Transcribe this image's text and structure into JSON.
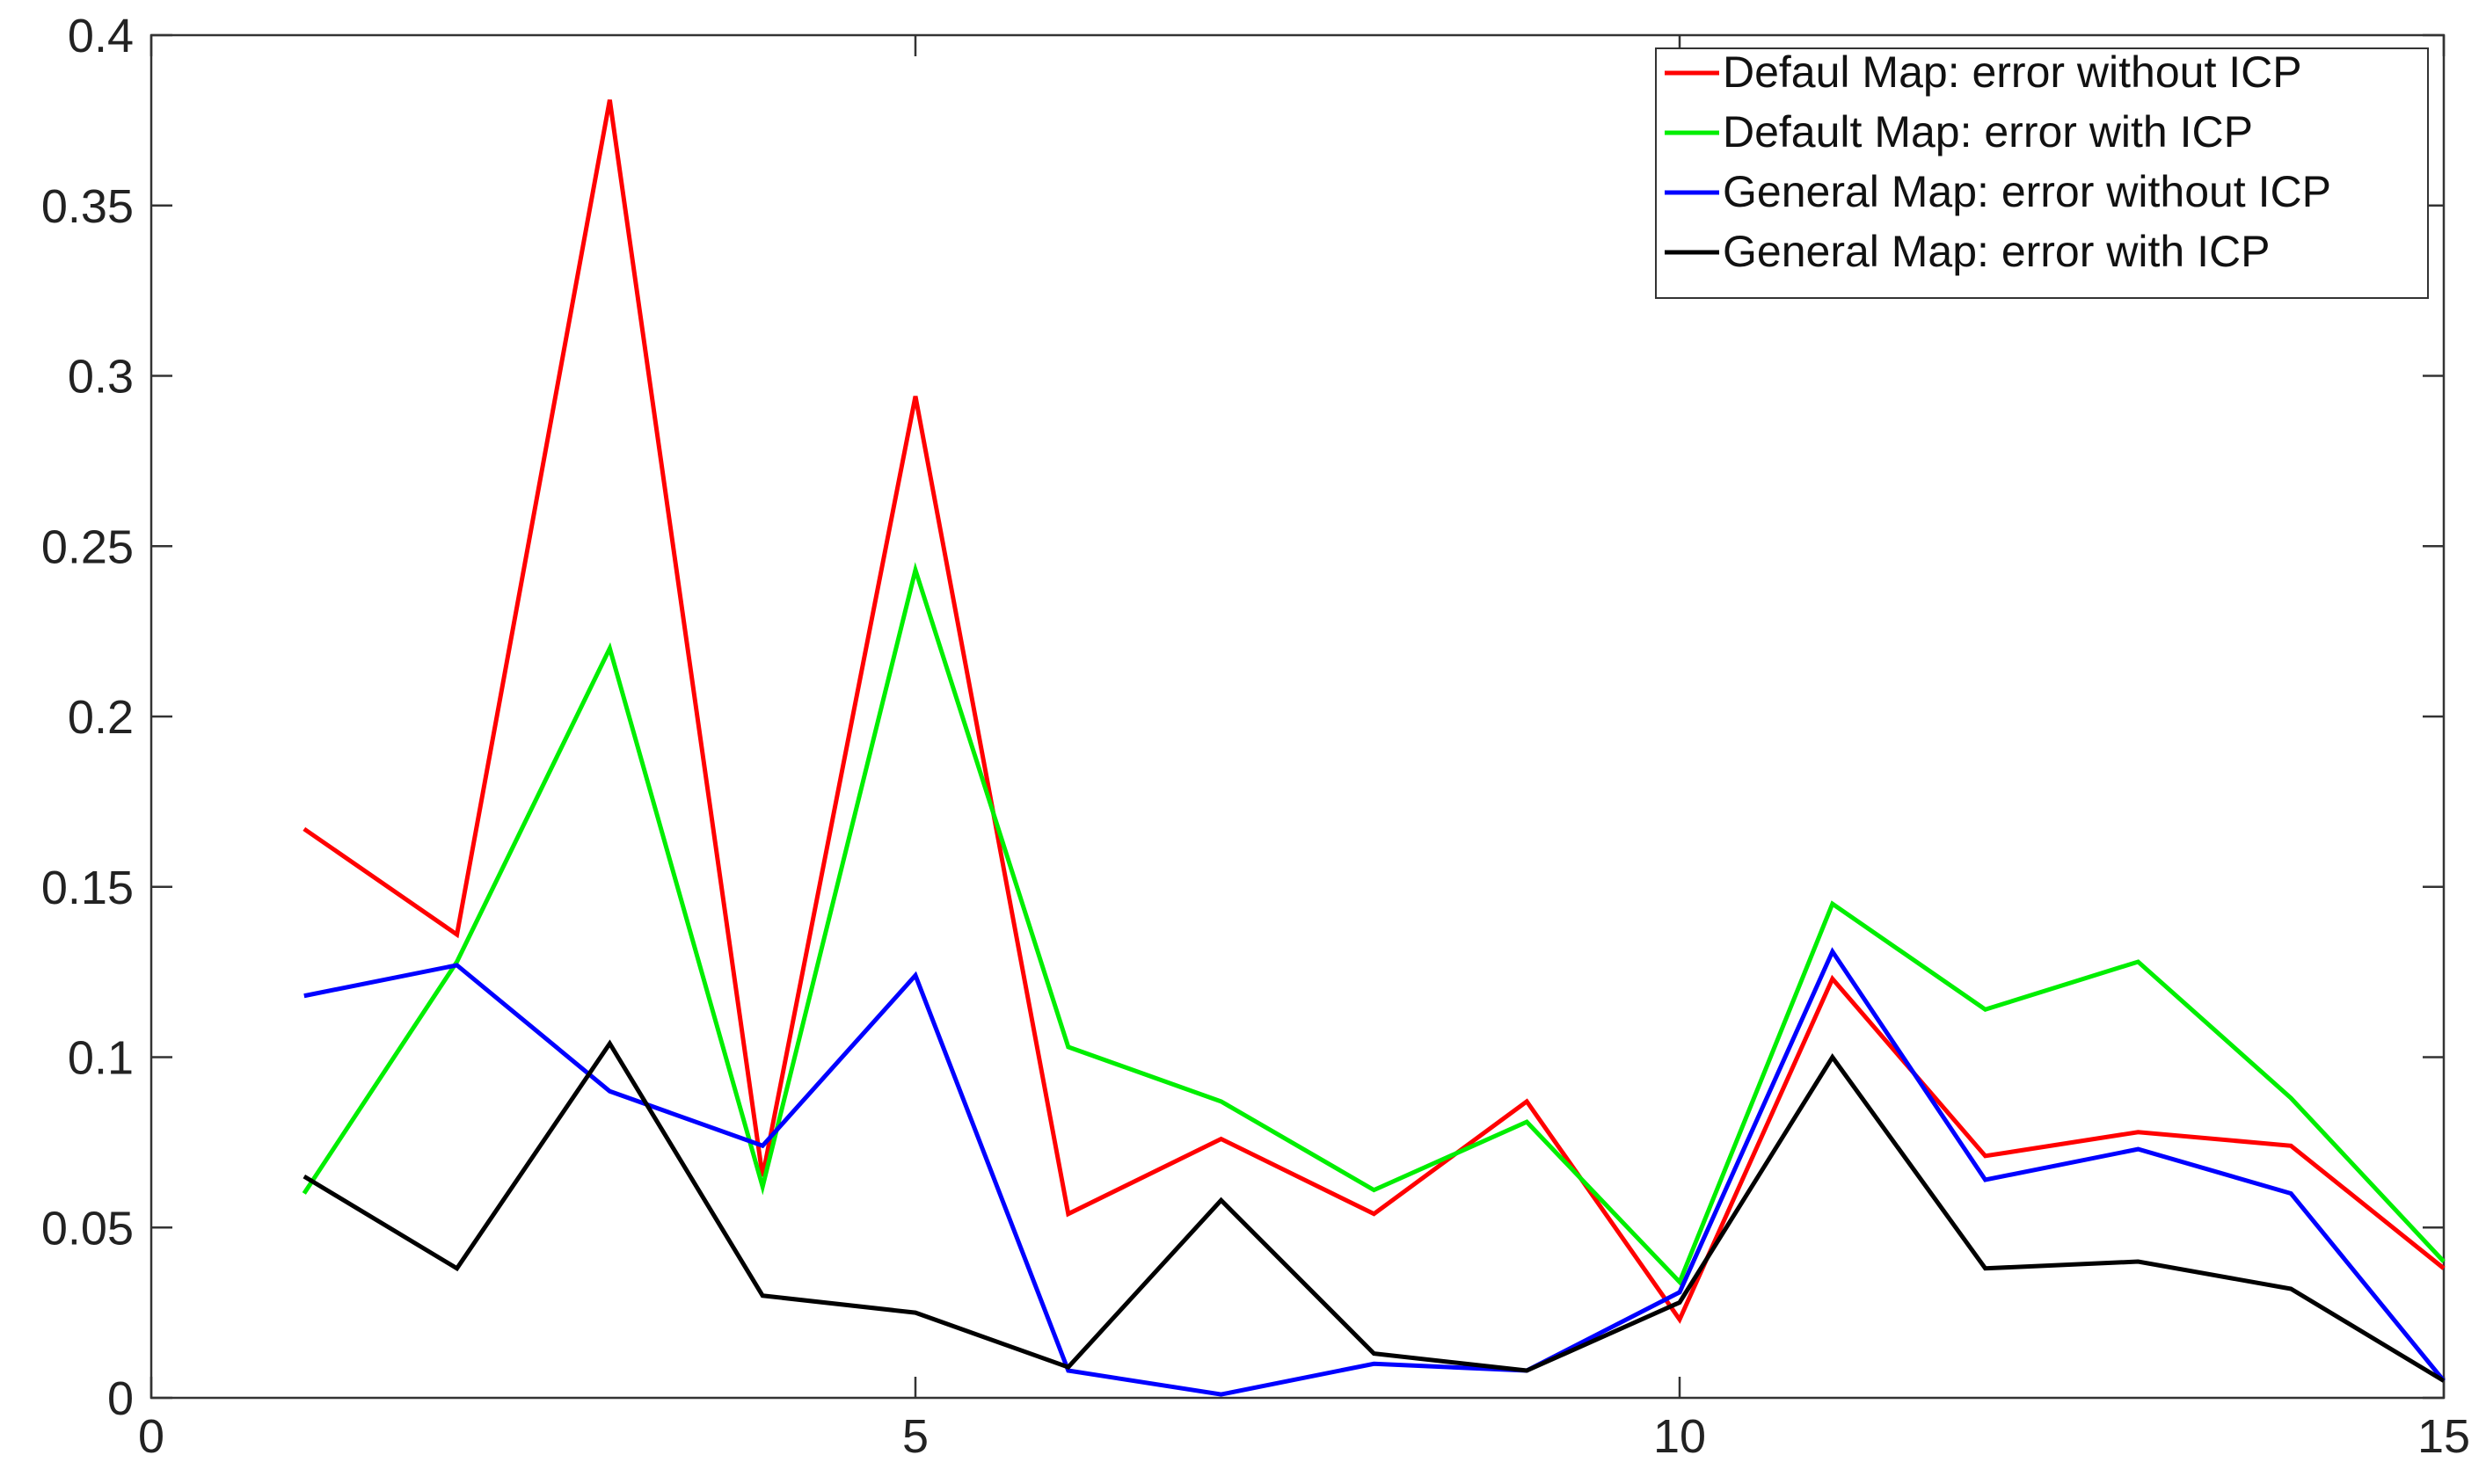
{
  "chart_data": {
    "type": "line",
    "title": "",
    "xlabel": "",
    "ylabel": "",
    "xlim": [
      0,
      15
    ],
    "ylim": [
      0,
      0.4
    ],
    "xticks": [
      0,
      5,
      10,
      15
    ],
    "yticks": [
      0,
      0.05,
      0.1,
      0.15,
      0.2,
      0.25,
      0.3,
      0.35,
      0.4
    ],
    "xtick_labels": [
      "0",
      "5",
      "10",
      "15"
    ],
    "ytick_labels": [
      "0",
      "0.05",
      "0.1",
      "0.15",
      "0.2",
      "0.25",
      "0.3",
      "0.35",
      "0.4"
    ],
    "grid": false,
    "legend_position": "top-right",
    "x": [
      1,
      2,
      3,
      4,
      5,
      6,
      7,
      8,
      9,
      10,
      11,
      12,
      13,
      14,
      15
    ],
    "series": [
      {
        "name": "Defaul Map: error without ICP",
        "color": "#ff0000",
        "values": [
          0.167,
          0.136,
          0.381,
          0.065,
          0.294,
          0.054,
          0.076,
          0.054,
          0.087,
          0.023,
          0.123,
          0.071,
          0.078,
          0.074,
          0.038
        ]
      },
      {
        "name": "Default Map: error with ICP",
        "color": "#00ee00",
        "values": [
          0.06,
          0.128,
          0.22,
          0.062,
          0.243,
          0.103,
          0.087,
          0.061,
          0.081,
          0.034,
          0.145,
          0.114,
          0.128,
          0.088,
          0.04
        ]
      },
      {
        "name": "General Map: error without ICP",
        "color": "#0000ff",
        "values": [
          0.118,
          0.127,
          0.09,
          0.074,
          0.124,
          0.008,
          0.001,
          0.01,
          0.008,
          0.031,
          0.131,
          0.064,
          0.073,
          0.06,
          0.005
        ]
      },
      {
        "name": "General Map: error with ICP",
        "color": "#000000",
        "values": [
          0.065,
          0.038,
          0.104,
          0.03,
          0.025,
          0.009,
          0.058,
          0.013,
          0.008,
          0.028,
          0.1,
          0.038,
          0.04,
          0.032,
          0.005
        ]
      }
    ]
  }
}
